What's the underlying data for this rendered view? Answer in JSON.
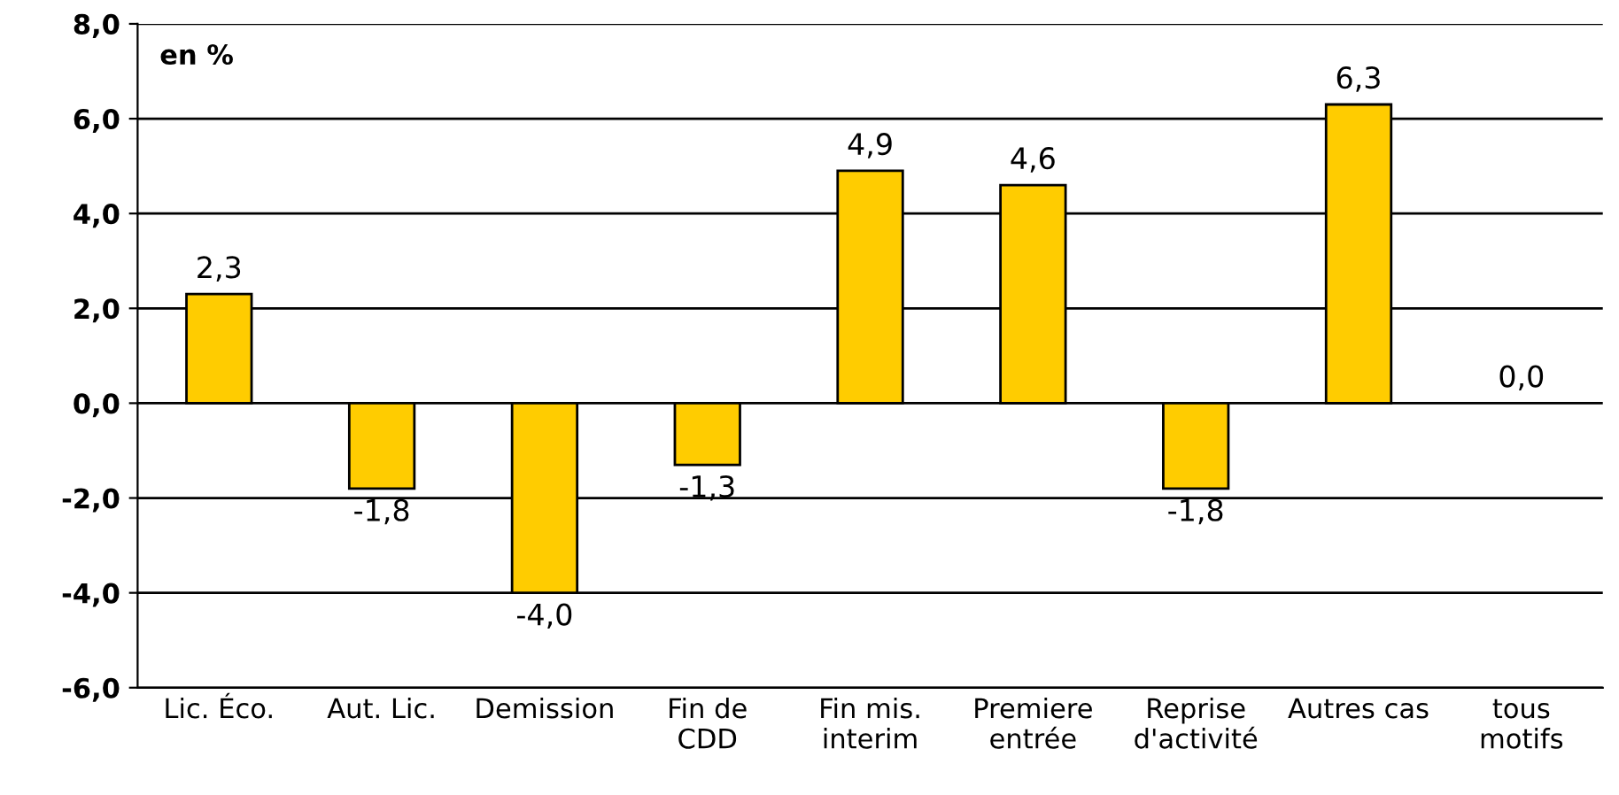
{
  "chart_data": {
    "type": "bar",
    "ylabel": "en %",
    "categories": [
      "Lic. Éco.",
      "Aut. Lic.",
      "Demission",
      "Fin de\nCDD",
      "Fin mis.\ninterim",
      "Premiere\nentrée",
      "Reprise\nd'activité",
      "Autres cas",
      "tous\nmotifs"
    ],
    "values": [
      2.3,
      -1.8,
      -4.0,
      -1.3,
      4.9,
      4.6,
      -1.8,
      6.3,
      0.0
    ],
    "value_labels": [
      "2,3",
      "-1,8",
      "-4,0",
      "-1,3",
      "4,9",
      "4,6",
      "-1,8",
      "6,3",
      "0,0"
    ],
    "color": "#ffcc00",
    "ylim": [
      -6,
      8
    ],
    "yticks": [
      {
        "value": -6,
        "label": "-6,0"
      },
      {
        "value": -4,
        "label": "-4,0"
      },
      {
        "value": -2,
        "label": "-2,0"
      },
      {
        "value": 0,
        "label": "0,0"
      },
      {
        "value": 2,
        "label": "2,0"
      },
      {
        "value": 4,
        "label": "4,0"
      },
      {
        "value": 6,
        "label": "6,0"
      },
      {
        "value": 8,
        "label": "8,0"
      }
    ],
    "grid": "y"
  }
}
